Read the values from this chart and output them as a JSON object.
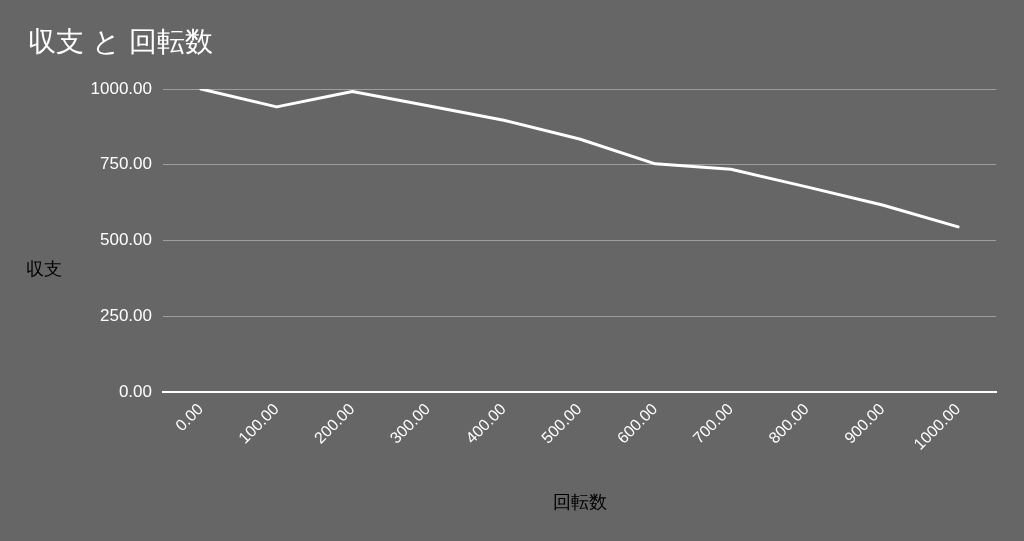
{
  "chart_data": {
    "type": "line",
    "title": "収支 と 回転数",
    "xlabel": "回転数",
    "ylabel": "収支",
    "categories": [
      "0.00",
      "100.00",
      "200.00",
      "300.00",
      "400.00",
      "500.00",
      "600.00",
      "700.00",
      "800.00",
      "900.00",
      "1000.00"
    ],
    "values": [
      1000,
      941,
      992,
      945,
      897,
      835,
      753,
      735,
      677,
      617,
      545
    ],
    "color": "#ffffff",
    "ylim": [
      0,
      1000
    ],
    "yticks": [
      {
        "value": 0,
        "label": "0.00"
      },
      {
        "value": 250,
        "label": "250.00"
      },
      {
        "value": 500,
        "label": "500.00"
      },
      {
        "value": 750,
        "label": "750.00"
      },
      {
        "value": 1000,
        "label": "1000.00"
      }
    ],
    "grid": "y",
    "marker": "none"
  }
}
